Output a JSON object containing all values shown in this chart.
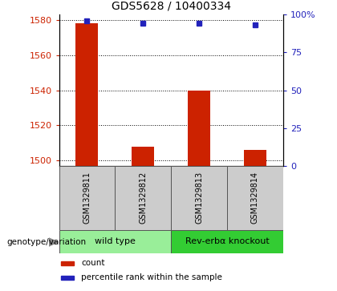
{
  "title": "GDS5628 / 10400334",
  "samples": [
    "GSM1329811",
    "GSM1329812",
    "GSM1329813",
    "GSM1329814"
  ],
  "count_values": [
    1578,
    1508,
    1540,
    1506
  ],
  "percentile_values": [
    96,
    94,
    94,
    93
  ],
  "ylim_left": [
    1497,
    1583
  ],
  "ylim_right": [
    0,
    100
  ],
  "yticks_left": [
    1500,
    1520,
    1540,
    1560,
    1580
  ],
  "yticks_right": [
    0,
    25,
    50,
    75,
    100
  ],
  "yticklabels_right": [
    "0",
    "25",
    "50",
    "75",
    "100%"
  ],
  "bar_color": "#cc2200",
  "scatter_color": "#2222bb",
  "left_tick_color": "#cc2200",
  "right_tick_color": "#2222bb",
  "title_fontsize": 10,
  "groups": [
    {
      "label": "wild type",
      "samples": [
        0,
        1
      ],
      "color": "#99ee99"
    },
    {
      "label": "Rev-erbα knockout",
      "samples": [
        2,
        3
      ],
      "color": "#33cc33"
    }
  ],
  "genotype_label": "genotype/variation",
  "legend_items": [
    {
      "color": "#cc2200",
      "label": "count"
    },
    {
      "color": "#2222bb",
      "label": "percentile rank within the sample"
    }
  ],
  "bar_width": 0.4,
  "x_positions": [
    0,
    1,
    2,
    3
  ]
}
